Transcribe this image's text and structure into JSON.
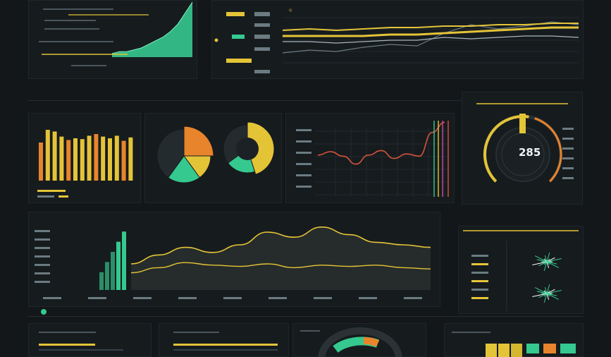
{
  "gauge": {
    "value": "285"
  },
  "colors": {
    "background": "#131719",
    "accent_yellow": "#e4c437",
    "accent_orange": "#e8842b",
    "accent_green": "#35c98f",
    "accent_red": "#d8543c",
    "line_grey": "#6b7b82"
  },
  "chart_data": [
    {
      "type": "area",
      "title": "",
      "series": [
        {
          "name": "",
          "values": [
            2,
            3,
            3,
            4,
            5,
            7,
            9,
            11,
            14,
            18,
            24,
            30
          ]
        }
      ]
    },
    {
      "type": "bar",
      "categories": [
        "",
        "",
        "",
        "",
        "",
        "",
        "",
        "",
        "",
        "",
        "",
        "",
        "",
        ""
      ],
      "values": [
        45,
        60,
        58,
        52,
        48,
        50,
        49,
        53,
        55,
        52,
        50,
        53,
        47,
        51
      ],
      "colors": [
        "#e8842b",
        "#e4c437"
      ]
    },
    {
      "type": "pie",
      "slices": [
        25,
        15,
        20,
        40
      ],
      "colors": [
        "#e8842b",
        "#e4c437",
        "#35c98f",
        "#242b2f"
      ]
    },
    {
      "type": "pie",
      "slices": [
        45,
        20,
        35
      ],
      "colors": [
        "#e4c437",
        "#35c98f",
        "#242b2f"
      ]
    },
    {
      "type": "line",
      "series": [
        {
          "name": "",
          "values": [
            32,
            35,
            31,
            24,
            32,
            36,
            29,
            33,
            31,
            52,
            61
          ]
        }
      ]
    },
    {
      "type": "line",
      "series": [
        {
          "name": "",
          "values": [
            15,
            22,
            28,
            24,
            30,
            40,
            36,
            44,
            38,
            32,
            30,
            28
          ]
        },
        {
          "name": "",
          "values": [
            8,
            12,
            16,
            14,
            13,
            15,
            12,
            14,
            13,
            14,
            12,
            11
          ]
        }
      ],
      "bars": [
        14,
        22,
        30,
        38,
        46
      ]
    },
    {
      "type": "line",
      "series": [
        {
          "name": "",
          "values": [
            10,
            12,
            11,
            14,
            16,
            15,
            24,
            30,
            27,
            29,
            32,
            30
          ]
        },
        {
          "name": "",
          "values": [
            18,
            18,
            17,
            18,
            19,
            19,
            21,
            20,
            21,
            22,
            22,
            21
          ]
        },
        {
          "name": "",
          "values": [
            22,
            22,
            22,
            22,
            23,
            23,
            24,
            25,
            26,
            27,
            28,
            28
          ]
        }
      ]
    }
  ]
}
